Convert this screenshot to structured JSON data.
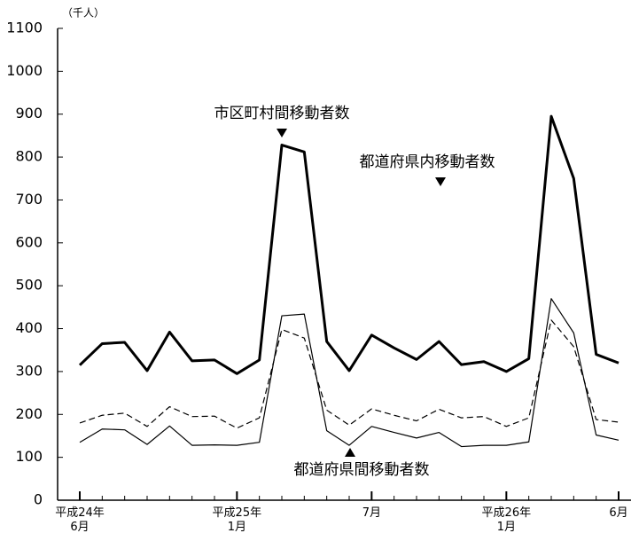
{
  "chart_data": {
    "type": "line",
    "unit_label": "（千人）",
    "categories": [
      "平成24年\n6月",
      null,
      null,
      null,
      null,
      null,
      null,
      "平成25年\n1月",
      null,
      null,
      null,
      null,
      null,
      "7月",
      null,
      null,
      null,
      null,
      null,
      "平成26年\n1月",
      null,
      null,
      null,
      null,
      "6月"
    ],
    "series": [
      {
        "name": "市区町村間移動者数",
        "color": "#000000",
        "width": 3,
        "dashed": false,
        "values": [
          315,
          365,
          368,
          302,
          392,
          325,
          327,
          295,
          327,
          828,
          812,
          370,
          302,
          385,
          355,
          328,
          370,
          316,
          323,
          300,
          330,
          895,
          750,
          340,
          320
        ]
      },
      {
        "name": "都道府県内移動者数",
        "color": "#000000",
        "width": 1.2,
        "dashed": true,
        "values": [
          180,
          198,
          203,
          172,
          218,
          195,
          196,
          168,
          192,
          398,
          378,
          210,
          175,
          213,
          198,
          185,
          212,
          192,
          195,
          172,
          192,
          420,
          358,
          188,
          182
        ]
      },
      {
        "name": "都道府県間移動者数",
        "color": "#000000",
        "width": 1.2,
        "dashed": false,
        "values": [
          135,
          166,
          164,
          130,
          173,
          128,
          129,
          128,
          135,
          430,
          434,
          162,
          128,
          172,
          158,
          145,
          158,
          125,
          128,
          128,
          136,
          470,
          390,
          152,
          140
        ]
      }
    ],
    "ylim": [
      0,
      1100
    ],
    "yticks": [
      0,
      100,
      200,
      300,
      400,
      500,
      600,
      700,
      800,
      900,
      1000,
      1100
    ],
    "grid": false
  }
}
